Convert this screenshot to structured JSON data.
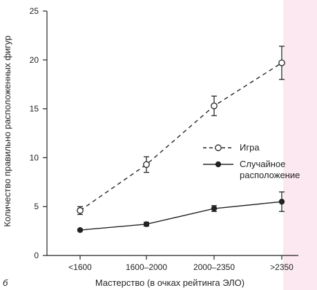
{
  "panel_letter": "б",
  "chart_data": {
    "type": "line",
    "title": "",
    "xlabel": "Мастерство (в очках рейтинга ЭЛО)",
    "ylabel": "Количество правильно расположенных фигур",
    "categories": [
      "<1600",
      "1600–2000",
      "2000–2350",
      ">2350"
    ],
    "yticks": [
      0,
      5,
      10,
      15,
      20,
      25
    ],
    "ylim": [
      0,
      25
    ],
    "grid": false,
    "legend_position": "right-middle",
    "series": [
      {
        "name": "Игра",
        "style": "dashed",
        "marker": "open-circle",
        "values": [
          4.6,
          9.3,
          15.3,
          19.7
        ],
        "error": [
          0.4,
          0.8,
          1.0,
          1.7
        ]
      },
      {
        "name": "Случайное расположение",
        "legend_lines": [
          "Случайное",
          "расположение"
        ],
        "style": "solid",
        "marker": "filled-circle",
        "values": [
          2.6,
          3.2,
          4.8,
          5.5
        ],
        "error": [
          0.1,
          0.2,
          0.3,
          1.0
        ]
      }
    ]
  }
}
